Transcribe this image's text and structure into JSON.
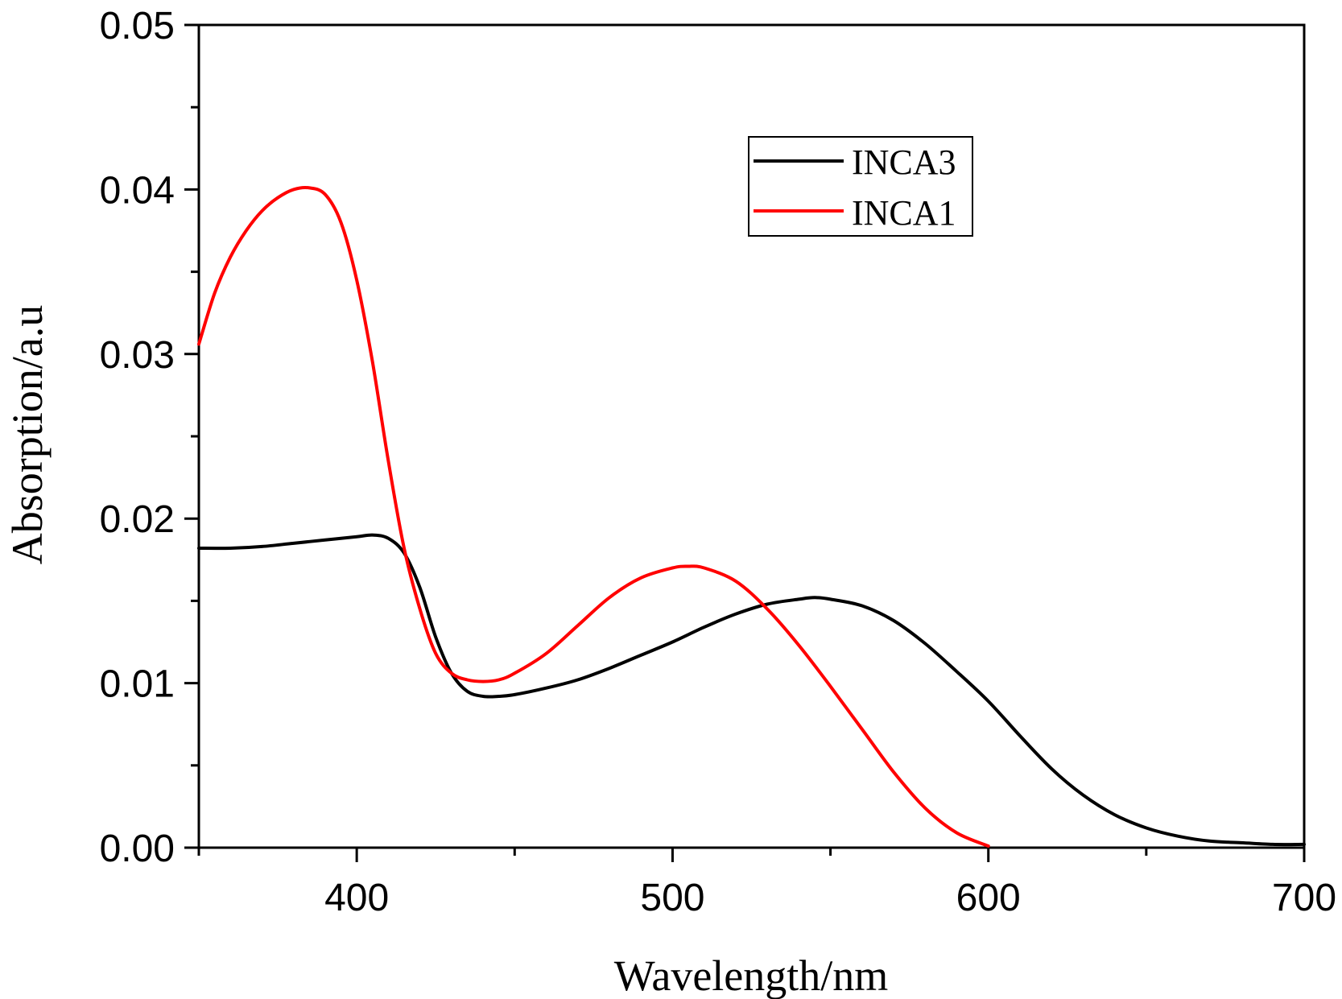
{
  "chart_data": {
    "type": "line",
    "title": "",
    "xlabel": "Wavelength/nm",
    "ylabel": "Absorption/a.u",
    "xlim": [
      350,
      700
    ],
    "ylim": [
      0.0,
      0.05
    ],
    "x_ticks": [
      400,
      500,
      600,
      700
    ],
    "x_tick_labels": [
      "400",
      "500",
      "600",
      "700"
    ],
    "y_ticks": [
      0.0,
      0.01,
      0.02,
      0.03,
      0.04,
      0.05
    ],
    "y_tick_labels": [
      "0.00",
      "0.01",
      "0.02",
      "0.03",
      "0.04",
      "0.05"
    ],
    "grid": false,
    "legend_position": "top-right",
    "series": [
      {
        "name": "INCA3",
        "color": "#000000",
        "x": [
          350,
          360,
          370,
          380,
          390,
          400,
          405,
          410,
          415,
          420,
          425,
          430,
          435,
          440,
          445,
          450,
          460,
          470,
          480,
          490,
          500,
          510,
          520,
          530,
          540,
          545,
          550,
          560,
          570,
          580,
          590,
          600,
          610,
          620,
          630,
          640,
          650,
          660,
          670,
          680,
          690,
          700
        ],
        "y": [
          0.0182,
          0.0182,
          0.0183,
          0.0185,
          0.0187,
          0.0189,
          0.019,
          0.0188,
          0.0179,
          0.0158,
          0.0128,
          0.0106,
          0.0095,
          0.0092,
          0.0092,
          0.0093,
          0.0097,
          0.0102,
          0.0109,
          0.0117,
          0.0125,
          0.0134,
          0.0142,
          0.0148,
          0.0151,
          0.0152,
          0.0151,
          0.0147,
          0.0138,
          0.0124,
          0.0107,
          0.0089,
          0.0068,
          0.0048,
          0.0032,
          0.002,
          0.0012,
          0.0007,
          0.0004,
          0.0003,
          0.0002,
          0.0002
        ]
      },
      {
        "name": "INCA1",
        "color": "#ff0000",
        "x": [
          350,
          355,
          360,
          365,
          370,
          375,
          380,
          385,
          390,
          395,
          400,
          405,
          410,
          415,
          420,
          425,
          430,
          435,
          440,
          445,
          450,
          460,
          470,
          480,
          490,
          500,
          505,
          510,
          520,
          530,
          540,
          550,
          560,
          570,
          580,
          590,
          600
        ],
        "y": [
          0.0306,
          0.0337,
          0.0359,
          0.0375,
          0.0387,
          0.0395,
          0.04,
          0.0401,
          0.0397,
          0.038,
          0.0345,
          0.0295,
          0.0235,
          0.0182,
          0.0145,
          0.0118,
          0.0106,
          0.0102,
          0.0101,
          0.0102,
          0.0106,
          0.0118,
          0.0135,
          0.0152,
          0.0164,
          0.017,
          0.0171,
          0.017,
          0.0162,
          0.0145,
          0.0123,
          0.0098,
          0.0072,
          0.0046,
          0.0024,
          0.0009,
          0.0001
        ]
      }
    ]
  }
}
